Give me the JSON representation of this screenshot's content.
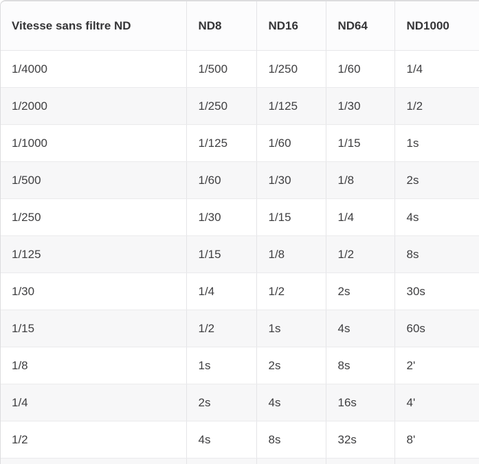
{
  "chart_data": {
    "type": "table",
    "columns": [
      "Vitesse sans filtre ND",
      "ND8",
      "ND16",
      "ND64",
      "ND1000"
    ],
    "rows": [
      [
        "1/4000",
        "1/500",
        "1/250",
        "1/60",
        "1/4"
      ],
      [
        "1/2000",
        "1/250",
        "1/125",
        "1/30",
        "1/2"
      ],
      [
        "1/1000",
        "1/125",
        "1/60",
        "1/15",
        "1s"
      ],
      [
        "1/500",
        "1/60",
        "1/30",
        "1/8",
        "2s"
      ],
      [
        "1/250",
        "1/30",
        "1/15",
        "1/4",
        "4s"
      ],
      [
        "1/125",
        "1/15",
        "1/8",
        "1/2",
        "8s"
      ],
      [
        "1/30",
        "1/4",
        "1/2",
        "2s",
        "30s"
      ],
      [
        "1/15",
        "1/2",
        "1s",
        "4s",
        "60s"
      ],
      [
        "1/8",
        "1s",
        "2s",
        "8s",
        "2'"
      ],
      [
        "1/4",
        "2s",
        "4s",
        "16s",
        "4'"
      ],
      [
        "1/2",
        "4s",
        "8s",
        "32s",
        "8'"
      ]
    ],
    "layout": {
      "grid": "row and column separators, alternating row stripes",
      "legend": "none",
      "header_position": "top"
    },
    "colors": {
      "text": "#3e3e40",
      "header_text": "#353537",
      "row_stripe": "#f7f7f8",
      "divider": "#e4e4e7",
      "outer_border": "#dcdcde"
    }
  }
}
